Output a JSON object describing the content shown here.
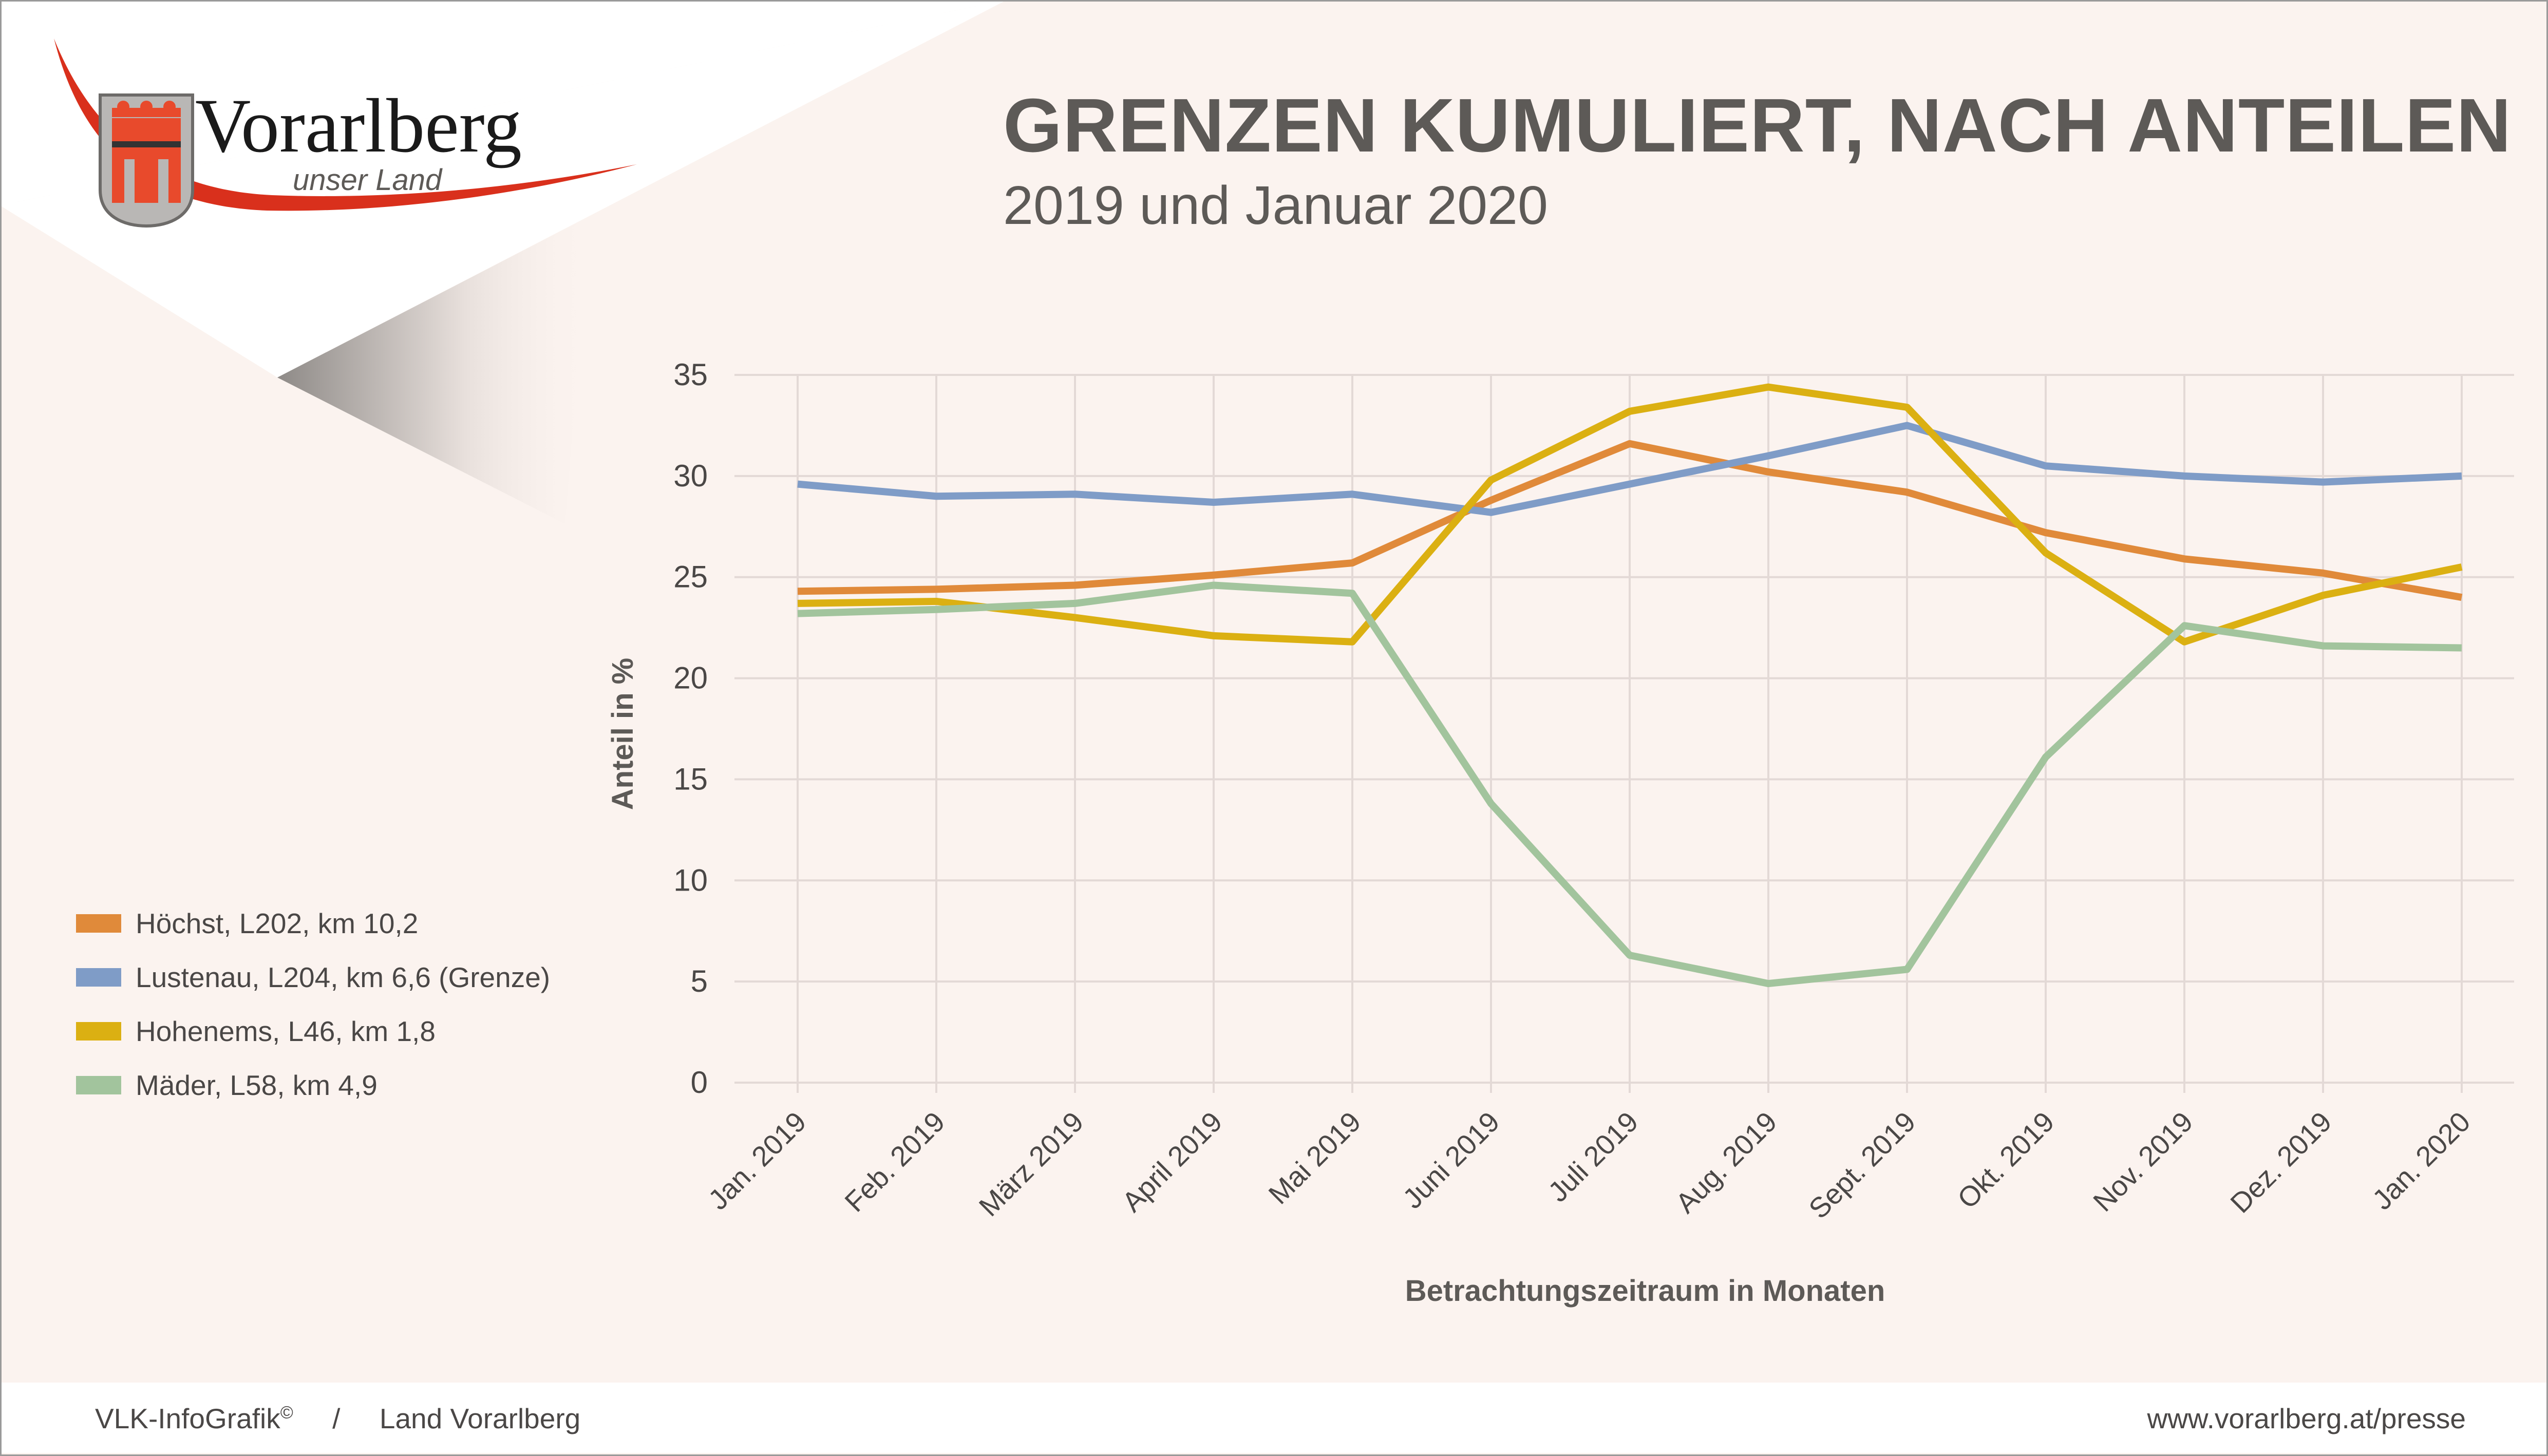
{
  "header": {
    "title": "GRENZEN KUMULIERT, NACH ANTEILEN",
    "subtitle": "2019 und Januar 2020"
  },
  "logo": {
    "name": "Vorarlberg",
    "tagline": "unser Land"
  },
  "footer": {
    "source": "VLK-InfoGrafik",
    "copyright": "©",
    "separator": "/",
    "publisher": "Land Vorarlberg",
    "url": "www.vorarlberg.at/presse"
  },
  "colors": {
    "background": "#fbf3ef",
    "text": "#5d5a57",
    "grid": "#e3d9d6",
    "brand_red": "#d9301c"
  },
  "chart_data": {
    "type": "line",
    "title": "GRENZEN KUMULIERT, NACH ANTEILEN",
    "subtitle": "2019 und Januar 2020",
    "xlabel": "Betrachtungszeitraum in Monaten",
    "ylabel": "Anteil in %",
    "ylim": [
      0,
      35
    ],
    "yticks": [
      0,
      5,
      10,
      15,
      20,
      25,
      30,
      35
    ],
    "grid": true,
    "legend_position": "left",
    "categories": [
      "Jan. 2019",
      "Feb. 2019",
      "März 2019",
      "April 2019",
      "Mai 2019",
      "Juni 2019",
      "Juli 2019",
      "Aug. 2019",
      "Sept. 2019",
      "Okt. 2019",
      "Nov. 2019",
      "Dez. 2019",
      "Jan. 2020"
    ],
    "series": [
      {
        "name": "Höchst, L202, km 10,2",
        "color": "#e08a3a",
        "values": [
          24.3,
          24.4,
          24.6,
          25.1,
          25.7,
          28.8,
          31.6,
          30.2,
          29.2,
          27.2,
          25.9,
          25.2,
          24.0
        ]
      },
      {
        "name": "Lustenau, L204, km 6,6 (Grenze)",
        "color": "#7f9cc7",
        "values": [
          29.6,
          29.0,
          29.1,
          28.7,
          29.1,
          28.2,
          29.6,
          31.0,
          32.5,
          30.5,
          30.0,
          29.7,
          30.0
        ]
      },
      {
        "name": "Hohenems, L46, km 1,8",
        "color": "#dbb012",
        "values": [
          23.7,
          23.8,
          23.0,
          22.1,
          21.8,
          29.8,
          33.2,
          34.4,
          33.4,
          26.2,
          21.8,
          24.1,
          25.5
        ]
      },
      {
        "name": "Mäder, L58, km 4,9",
        "color": "#a2c49d",
        "values": [
          23.2,
          23.4,
          23.7,
          24.6,
          24.2,
          13.8,
          6.3,
          4.9,
          5.6,
          16.1,
          22.6,
          21.6,
          21.5
        ]
      }
    ]
  }
}
